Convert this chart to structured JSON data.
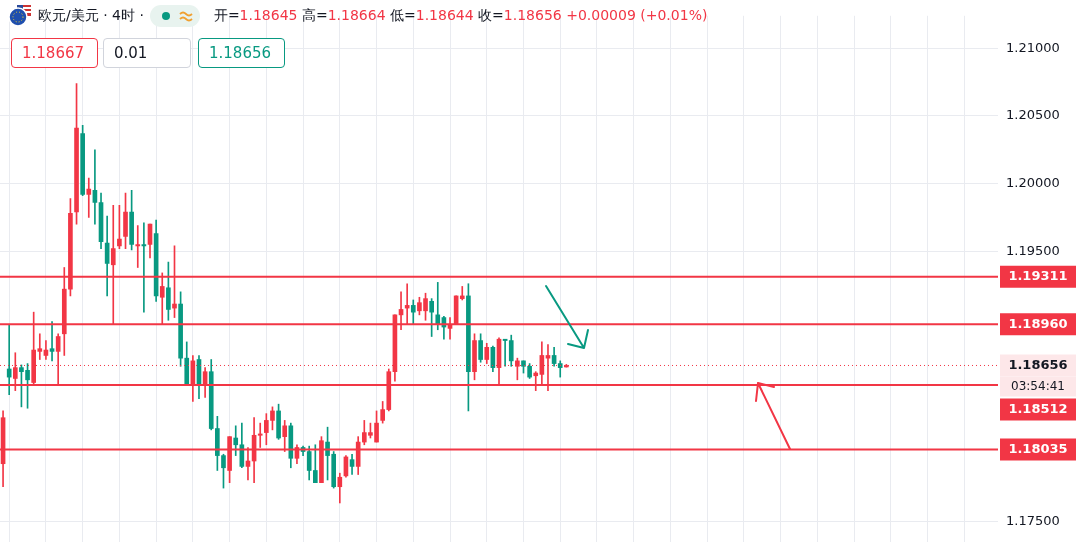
{
  "chart_data": {
    "type": "candlestick",
    "title": "欧元/美元 · 4时 ·",
    "subtitle": "开=1.18645 高=1.18664 低=1.18644 收=1.18656 +0.00009 (+0.01%)",
    "categories": [
      null,
      null,
      null,
      null,
      null,
      null,
      null,
      null,
      null,
      null,
      null,
      null,
      null,
      null,
      null,
      null,
      null,
      null,
      null,
      null,
      null,
      null,
      null,
      null,
      null,
      null,
      null,
      null,
      null,
      null,
      null,
      null,
      null,
      null,
      null,
      null,
      null,
      null,
      null,
      null,
      null,
      null,
      null,
      null,
      null,
      null,
      null,
      null,
      null,
      null,
      null,
      null,
      null,
      null,
      null,
      null,
      null,
      null,
      null,
      null,
      null,
      null,
      null,
      null,
      null,
      null,
      null,
      null,
      null,
      null,
      null,
      null,
      null,
      null,
      null,
      null,
      null,
      null,
      null,
      null,
      null,
      null,
      null,
      null,
      null,
      null,
      null,
      null,
      null,
      null,
      null,
      null,
      null,
      null,
      null,
      null,
      null,
      null,
      null,
      null,
      null,
      null,
      null,
      null,
      null,
      null,
      null,
      null,
      null,
      null,
      null,
      null,
      null,
      null,
      null,
      null,
      null,
      null,
      null,
      null,
      null,
      null,
      null,
      null,
      null,
      null,
      null,
      null,
      null,
      null,
      null,
      null,
      null,
      null,
      null,
      null,
      null,
      null,
      null,
      null,
      null,
      null,
      null,
      null,
      null,
      null,
      null,
      null,
      null,
      null,
      null,
      null,
      null,
      null,
      null,
      null,
      null,
      null,
      null,
      null,
      null,
      null,
      null
    ],
    "ohlc": [
      [
        1.1793,
        1.1832,
        1.1776,
        1.1827
      ],
      [
        1.1863,
        1.1896,
        1.1844,
        1.1857
      ],
      [
        1.1856,
        1.1875,
        1.1847,
        1.1864
      ],
      [
        1.1864,
        1.1866,
        1.1835,
        1.1861
      ],
      [
        1.1862,
        1.1867,
        1.1834,
        1.1855
      ],
      [
        1.1853,
        1.1905,
        1.1851,
        1.1877
      ],
      [
        1.1876,
        1.1889,
        1.187,
        1.1878
      ],
      [
        1.1873,
        1.1884,
        1.187,
        1.1877
      ],
      [
        1.1878,
        1.1898,
        1.1869,
        1.1876
      ],
      [
        1.1876,
        1.1889,
        1.1851,
        1.1887
      ],
      [
        1.1889,
        1.1938,
        1.1873,
        1.1922
      ],
      [
        1.1922,
        1.1989,
        1.1917,
        1.1978
      ],
      [
        1.1979,
        1.2074,
        1.197,
        1.2041
      ],
      [
        1.2037,
        1.2043,
        1.1991,
        1.1992
      ],
      [
        1.1992,
        1.2004,
        1.1975,
        1.1996
      ],
      [
        1.1995,
        1.2025,
        1.197,
        1.1986
      ],
      [
        1.1986,
        1.1993,
        1.1952,
        1.1957
      ],
      [
        1.1956,
        1.1976,
        1.1917,
        1.1941
      ],
      [
        1.194,
        1.1984,
        1.1896,
        1.1952
      ],
      [
        1.1954,
        1.1984,
        1.1952,
        1.1959
      ],
      [
        1.1961,
        1.1993,
        1.1952,
        1.1979
      ],
      [
        1.1979,
        1.1995,
        1.1951,
        1.1955
      ],
      [
        1.1954,
        1.1969,
        1.1938,
        1.1955
      ],
      [
        1.1955,
        1.1971,
        1.1905,
        1.1954
      ],
      [
        1.1955,
        1.197,
        1.1945,
        1.197
      ],
      [
        1.1963,
        1.1973,
        1.1913,
        1.1917
      ],
      [
        1.1916,
        1.1934,
        1.1896,
        1.1924
      ],
      [
        1.1923,
        1.1942,
        1.1899,
        1.1907
      ],
      [
        1.1908,
        1.1954,
        1.1901,
        1.1911
      ],
      [
        1.1911,
        1.192,
        1.1865,
        1.1871
      ],
      [
        1.1871,
        1.1883,
        1.1851,
        1.1851
      ],
      [
        1.1851,
        1.1873,
        1.1839,
        1.1869
      ],
      [
        1.187,
        1.1873,
        1.1841,
        1.1851
      ],
      [
        1.1851,
        1.1864,
        1.1842,
        1.1861
      ],
      [
        1.1861,
        1.187,
        1.1818,
        1.1819
      ],
      [
        1.1819,
        1.1828,
        1.1788,
        1.1799
      ],
      [
        1.1799,
        1.18,
        1.1775,
        1.179
      ],
      [
        1.1788,
        1.1813,
        1.1779,
        1.1813
      ],
      [
        1.1812,
        1.1821,
        1.1799,
        1.1807
      ],
      [
        1.1807,
        1.1823,
        1.179,
        1.1791
      ],
      [
        1.1791,
        1.1805,
        1.1781,
        1.1795
      ],
      [
        1.1795,
        1.1827,
        1.1779,
        1.1814
      ],
      [
        1.1814,
        1.1823,
        1.1805,
        1.1815
      ],
      [
        1.1816,
        1.183,
        1.1807,
        1.1825
      ],
      [
        1.1825,
        1.1835,
        1.1818,
        1.1832
      ],
      [
        1.1832,
        1.1837,
        1.1811,
        1.1812
      ],
      [
        1.1813,
        1.1825,
        1.1802,
        1.1821
      ],
      [
        1.1821,
        1.1823,
        1.179,
        1.1797
      ],
      [
        1.1797,
        1.1807,
        1.1793,
        1.1805
      ],
      [
        1.1805,
        1.1806,
        1.1799,
        1.1802
      ],
      [
        1.1802,
        1.1806,
        1.1781,
        1.1788
      ],
      [
        1.1788,
        1.1807,
        1.1779,
        1.1779
      ],
      [
        1.1779,
        1.1813,
        1.1779,
        1.181
      ],
      [
        1.1809,
        1.182,
        1.1781,
        1.1799
      ],
      [
        1.18,
        1.1802,
        1.1775,
        1.1776
      ],
      [
        1.1776,
        1.1786,
        1.1764,
        1.1783
      ],
      [
        1.1784,
        1.1799,
        1.1783,
        1.1798
      ],
      [
        1.1796,
        1.18,
        1.1785,
        1.1791
      ],
      [
        1.1791,
        1.1813,
        1.1785,
        1.1809
      ],
      [
        1.1809,
        1.1825,
        1.1807,
        1.1816
      ],
      [
        1.1814,
        1.1823,
        1.1812,
        1.1816
      ],
      [
        1.1809,
        1.1832,
        1.1809,
        1.1823
      ],
      [
        1.1825,
        1.1839,
        1.1823,
        1.1833
      ],
      [
        1.1833,
        1.1863,
        1.1832,
        1.1861
      ],
      [
        1.1861,
        1.1903,
        1.1854,
        1.1903
      ],
      [
        1.1903,
        1.192,
        1.1892,
        1.1907
      ],
      [
        1.1908,
        1.1926,
        1.1896,
        1.191
      ],
      [
        1.191,
        1.1914,
        1.1896,
        1.1905
      ],
      [
        1.1906,
        1.1916,
        1.1903,
        1.1912
      ],
      [
        1.1906,
        1.1919,
        1.1899,
        1.1915
      ],
      [
        1.1913,
        1.1915,
        1.1887,
        1.1905
      ],
      [
        1.1903,
        1.1927,
        1.1892,
        1.1896
      ],
      [
        1.1901,
        1.1902,
        1.1885,
        1.1894
      ],
      [
        1.1893,
        1.1901,
        1.1885,
        1.1896
      ],
      [
        1.1896,
        1.1917,
        1.1896,
        1.1917
      ],
      [
        1.1915,
        1.1924,
        1.1914,
        1.1917
      ],
      [
        1.1917,
        1.1926,
        1.1832,
        1.1861
      ],
      [
        1.1861,
        1.1889,
        1.1855,
        1.1884
      ],
      [
        1.1884,
        1.1889,
        1.1868,
        1.187
      ],
      [
        1.187,
        1.1882,
        1.1867,
        1.1879
      ],
      [
        1.1879,
        1.188,
        1.1861,
        1.1864
      ],
      [
        1.1864,
        1.1886,
        1.1851,
        1.1885
      ],
      [
        1.1885,
        1.1885,
        1.1865,
        1.1884
      ],
      [
        1.1884,
        1.1888,
        1.1865,
        1.1869
      ],
      [
        1.1865,
        1.1871,
        1.1855,
        1.1869
      ],
      [
        1.1869,
        1.1869,
        1.186,
        1.1865
      ],
      [
        1.1865,
        1.1867,
        1.1856,
        1.1857
      ],
      [
        1.1858,
        1.1861,
        1.1847,
        1.186
      ],
      [
        1.1859,
        1.1883,
        1.1851,
        1.1873
      ],
      [
        1.1871,
        1.1881,
        1.1847,
        1.1873
      ],
      [
        1.1873,
        1.1879,
        1.1865,
        1.1867
      ],
      [
        1.1867,
        1.1869,
        1.1857,
        1.1864
      ],
      [
        1.18645,
        1.18664,
        1.18644,
        1.18656
      ],
      null,
      null,
      null,
      null,
      null,
      null,
      null,
      null,
      null,
      null,
      null,
      null,
      null,
      null,
      null,
      null,
      null,
      null,
      null,
      null,
      null,
      null,
      null,
      null,
      null,
      null,
      null,
      null,
      null,
      null,
      null,
      null,
      null,
      null,
      null,
      null,
      null,
      null,
      null,
      null,
      null,
      null,
      null,
      null,
      null,
      null,
      null,
      null,
      null,
      null,
      null,
      null,
      null,
      null,
      null,
      null,
      null,
      null,
      null,
      null,
      null,
      null,
      null,
      null,
      null,
      null,
      null,
      null,
      null,
      null
    ],
    "colors": [
      "#f23645",
      "#089981",
      "#f23645",
      "#089981",
      "#089981",
      "#f23645",
      "#f23645",
      "#f23645",
      "#089981",
      "#f23645",
      "#f23645",
      "#f23645",
      "#f23645",
      "#089981",
      "#f23645",
      "#089981",
      "#089981",
      "#089981",
      "#f23645",
      "#f23645",
      "#f23645",
      "#089981",
      "#f23645",
      "#089981",
      "#f23645",
      "#089981",
      "#f23645",
      "#089981",
      "#f23645",
      "#089981",
      "#089981",
      "#f23645",
      "#089981",
      "#f23645",
      "#089981",
      "#089981",
      "#089981",
      "#f23645",
      "#089981",
      "#089981",
      "#f23645",
      "#f23645",
      "#f23645",
      "#f23645",
      "#f23645",
      "#089981",
      "#f23645",
      "#089981",
      "#f23645",
      "#089981",
      "#089981",
      "#089981",
      "#f23645",
      "#089981",
      "#089981",
      "#f23645",
      "#f23645",
      "#089981",
      "#f23645",
      "#f23645",
      "#f23645",
      "#f23645",
      "#f23645",
      "#f23645",
      "#f23645",
      "#f23645",
      "#f23645",
      "#089981",
      "#f23645",
      "#f23645",
      "#089981",
      "#089981",
      "#089981",
      "#f23645",
      "#f23645",
      "#f23645",
      "#089981",
      "#f23645",
      "#089981",
      "#f23645",
      "#089981",
      "#f23645",
      "#089981",
      "#089981",
      "#f23645",
      "#089981",
      "#089981",
      "#f23645",
      "#f23645",
      "#f23645",
      "#089981",
      "#089981",
      "#f23645",
      null,
      null,
      null,
      null,
      null,
      null,
      null,
      null,
      null,
      null,
      null,
      null,
      null,
      null,
      null,
      null,
      null,
      null,
      null,
      null,
      null,
      null,
      null,
      null,
      null,
      null,
      null,
      null,
      null,
      null,
      null,
      null,
      null,
      null,
      null,
      null,
      null,
      null,
      null,
      null,
      null,
      null,
      null,
      null,
      null,
      null,
      null,
      null,
      null,
      null,
      null,
      null,
      null,
      null,
      null,
      null,
      null,
      null,
      null,
      null,
      null,
      null,
      null,
      null,
      null,
      null,
      null,
      null,
      null,
      null
    ],
    "ylim": [
      1.1735,
      1.2124
    ],
    "yticks": [
      {
        "value": 1.175,
        "label": "1.17500"
      },
      {
        "value": 1.195,
        "label": "1.19500"
      },
      {
        "value": 1.2,
        "label": "1.20000"
      },
      {
        "value": 1.205,
        "label": "1.20500"
      },
      {
        "value": 1.21,
        "label": "1.21000"
      }
    ],
    "tick_labels": "y",
    "grid": true,
    "legend": false,
    "ref_lines": [
      {
        "axis": "y",
        "value": 1.19311,
        "label": "1.19311",
        "color": "#f23645",
        "line_style": "solid"
      },
      {
        "axis": "y",
        "value": 1.1896,
        "label": "1.18960",
        "color": "#f23645",
        "line_style": "solid"
      },
      {
        "axis": "y",
        "value": 1.18512,
        "label": "1.18512",
        "color": "#f23645",
        "line_style": "solid"
      },
      {
        "axis": "y",
        "value": 1.18035,
        "label": "1.18035",
        "color": "#f23645",
        "line_style": "solid"
      },
      {
        "axis": "y",
        "value": 1.18656,
        "label": "1.18656",
        "color": "#f23645",
        "line_style": "dotted"
      }
    ],
    "annotations": [
      "1.18667",
      "0.01",
      "1.18656",
      "03:54:41"
    ]
  }
}
